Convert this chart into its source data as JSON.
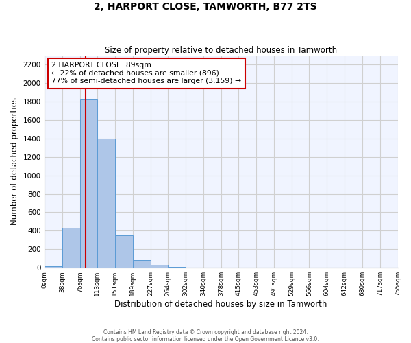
{
  "title": "2, HARPORT CLOSE, TAMWORTH, B77 2TS",
  "subtitle": "Size of property relative to detached houses in Tamworth",
  "xlabel": "Distribution of detached houses by size in Tamworth",
  "ylabel": "Number of detached properties",
  "bin_edges": [
    0,
    38,
    76,
    113,
    151,
    189,
    227,
    264,
    302,
    340,
    378,
    415,
    453,
    491,
    529,
    566,
    604,
    642,
    680,
    717,
    755
  ],
  "bin_labels": [
    "0sqm",
    "38sqm",
    "76sqm",
    "113sqm",
    "151sqm",
    "189sqm",
    "227sqm",
    "264sqm",
    "302sqm",
    "340sqm",
    "378sqm",
    "415sqm",
    "453sqm",
    "491sqm",
    "529sqm",
    "566sqm",
    "604sqm",
    "642sqm",
    "680sqm",
    "717sqm",
    "755sqm"
  ],
  "counts": [
    15,
    430,
    1820,
    1400,
    350,
    80,
    30,
    10,
    5,
    0,
    0,
    0,
    0,
    0,
    0,
    0,
    0,
    0,
    0,
    0
  ],
  "property_size": 89,
  "bar_color": "#aec6e8",
  "bar_edge_color": "#5b9bd5",
  "vline_color": "#cc0000",
  "annotation_line1": "2 HARPORT CLOSE: 89sqm",
  "annotation_line2": "← 22% of detached houses are smaller (896)",
  "annotation_line3": "77% of semi-detached houses are larger (3,159) →",
  "annotation_bbox_color": "#ffffff",
  "annotation_bbox_edge": "#cc0000",
  "ylim": [
    0,
    2300
  ],
  "yticks": [
    0,
    200,
    400,
    600,
    800,
    1000,
    1200,
    1400,
    1600,
    1800,
    2000,
    2200
  ],
  "grid_color": "#d0d0d0",
  "footer_line1": "Contains HM Land Registry data © Crown copyright and database right 2024.",
  "footer_line2": "Contains public sector information licensed under the Open Government Licence v3.0.",
  "bg_color": "#f0f4ff"
}
